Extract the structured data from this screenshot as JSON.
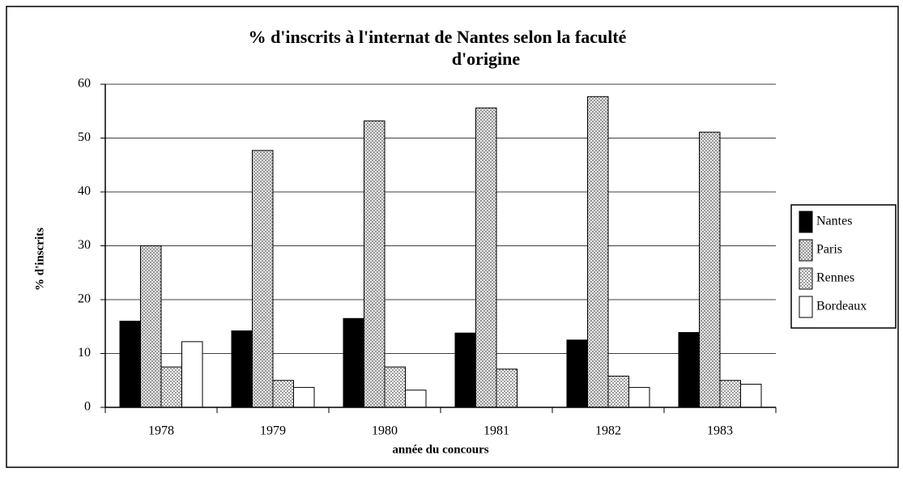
{
  "chart_data": {
    "type": "bar",
    "title": "% d'inscrits à l'internat de Nantes selon la faculté d'origine",
    "x_label": "année du concours",
    "y_label": "% d'inscrits",
    "categories": [
      "1978",
      "1979",
      "1980",
      "1981",
      "1982",
      "1983"
    ],
    "series": [
      {
        "name": "Nantes",
        "color": "#000000",
        "values": [
          16,
          14.2,
          16.5,
          13.8,
          12.5,
          13.9
        ]
      },
      {
        "name": "Paris",
        "color": "#808080",
        "values": [
          30,
          47.7,
          53.2,
          55.6,
          57.7,
          51.1
        ]
      },
      {
        "name": "Rennes",
        "color": "#d8d8d8",
        "values": [
          7.5,
          5,
          7.5,
          7.1,
          5.8,
          5
        ]
      },
      {
        "name": "Bordeaux",
        "color": "#ffffff",
        "values": [
          12.2,
          3.7,
          3.2,
          0,
          3.7,
          4.3
        ]
      }
    ],
    "ylim": [
      0,
      60
    ],
    "yticks": [
      0,
      10,
      20,
      30,
      40,
      50,
      60
    ],
    "grid": true,
    "legend": "right"
  }
}
